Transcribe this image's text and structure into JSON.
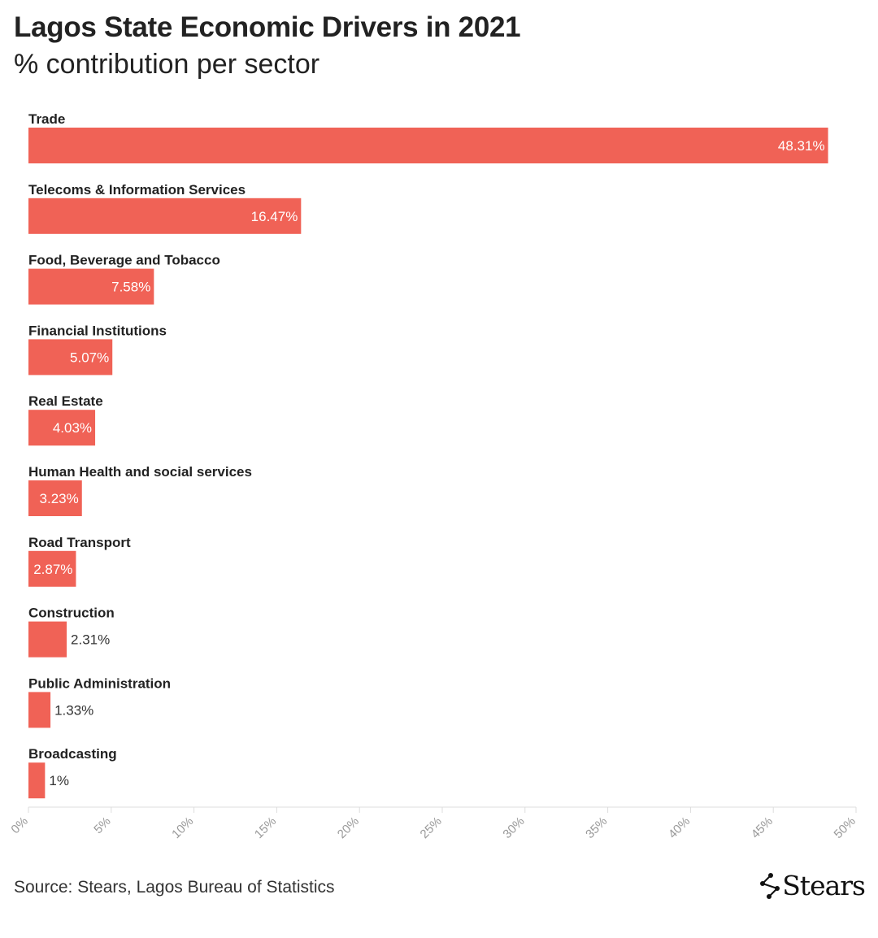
{
  "header": {
    "title": "Lagos State Economic Drivers in 2021",
    "subtitle": "% contribution per sector"
  },
  "footer": {
    "source": "Source: Stears, Lagos Bureau of Statistics",
    "logo_text": "Stears"
  },
  "colors": {
    "bar": "#f06256",
    "label_inside": "#ffffff",
    "label_outside": "#333333",
    "category_text": "#222222",
    "axis": "#dddddd",
    "tick_text": "#999999"
  },
  "chart_data": {
    "type": "bar",
    "orientation": "horizontal",
    "title": "Lagos State Economic Drivers in 2021",
    "subtitle": "% contribution per sector",
    "categories": [
      "Trade",
      "Telecoms & Information Services",
      "Food, Beverage and Tobacco",
      "Financial Institutions",
      "Real Estate",
      "Human Health and social services",
      "Road Transport",
      "Construction",
      "Public Administration",
      "Broadcasting"
    ],
    "values": [
      48.31,
      16.47,
      7.58,
      5.07,
      4.03,
      3.23,
      2.87,
      2.31,
      1.33,
      1
    ],
    "value_labels": [
      "48.31%",
      "16.47%",
      "7.58%",
      "5.07%",
      "4.03%",
      "3.23%",
      "2.87%",
      "2.31%",
      "1.33%",
      "1%"
    ],
    "xlim": [
      0,
      50
    ],
    "xticks": [
      0,
      5,
      10,
      15,
      20,
      25,
      30,
      35,
      40,
      45,
      50
    ],
    "xtick_labels": [
      "0%",
      "5%",
      "10%",
      "15%",
      "20%",
      "25%",
      "30%",
      "35%",
      "40%",
      "45%",
      "50%"
    ],
    "grid": false
  }
}
